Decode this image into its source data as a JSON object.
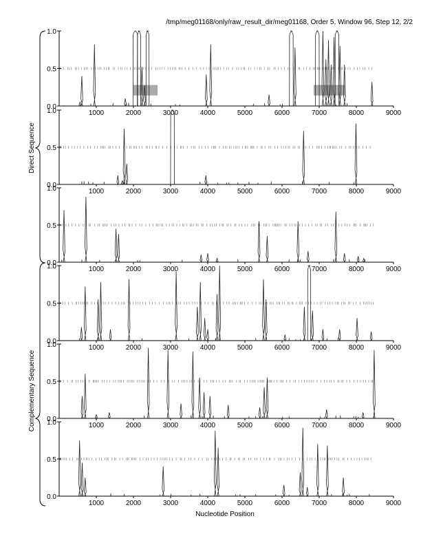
{
  "header": {
    "title": "/tmp/meg01168/only/raw_result_dir/meg01168, Order 5, Window 96, Step 12, 2/2"
  },
  "side_labels": {
    "direct": "Direct Sequence",
    "complementary": "Complementary Sequence"
  },
  "xaxis": {
    "label": "Nucleotide Position"
  },
  "chart_data": {
    "type": "line",
    "title": "/tmp/meg01168/only/raw_result_dir/meg01168, Order 5, Window 96, Step 12, 2/2",
    "xlabel": "Nucleotide Position",
    "xlim": [
      0,
      9000
    ],
    "ylim": [
      0,
      1
    ],
    "xticks": [
      "1000",
      "2000",
      "3000",
      "4000",
      "5000",
      "6000",
      "7000",
      "8000",
      "9000"
    ],
    "yticks": [
      "0.0",
      "0.5",
      "1.0"
    ],
    "grid": false,
    "panels": [
      {
        "name": "direct-frame-1",
        "group": "Direct Sequence",
        "shaded_regions": [
          [
            2000,
            2650
          ],
          [
            6850,
            7700
          ]
        ],
        "peaks": [
          {
            "x": 560,
            "y": 0.05
          },
          {
            "x": 610,
            "y": 0.4
          },
          {
            "x": 950,
            "y": 0.82
          },
          {
            "x": 1780,
            "y": 0.1
          },
          {
            "x": 2050,
            "y": 1.0,
            "w": 80
          },
          {
            "x": 2150,
            "y": 1.0,
            "w": 50
          },
          {
            "x": 2230,
            "y": 0.52
          },
          {
            "x": 2300,
            "y": 0.28
          },
          {
            "x": 2380,
            "y": 1.0,
            "w": 40
          },
          {
            "x": 3960,
            "y": 0.42
          },
          {
            "x": 4080,
            "y": 0.82
          },
          {
            "x": 5650,
            "y": 0.15
          },
          {
            "x": 6250,
            "y": 1.0,
            "w": 60
          },
          {
            "x": 6350,
            "y": 0.78
          },
          {
            "x": 6950,
            "y": 1.0,
            "w": 60
          },
          {
            "x": 7100,
            "y": 1.0
          },
          {
            "x": 7180,
            "y": 0.62
          },
          {
            "x": 7250,
            "y": 0.88
          },
          {
            "x": 7320,
            "y": 0.55
          },
          {
            "x": 7400,
            "y": 0.92
          },
          {
            "x": 7480,
            "y": 1.0,
            "w": 60
          },
          {
            "x": 7560,
            "y": 0.8
          },
          {
            "x": 7680,
            "y": 0.55
          },
          {
            "x": 8420,
            "y": 0.32
          }
        ]
      },
      {
        "name": "direct-frame-2",
        "group": "Direct Sequence",
        "shaded_regions": [],
        "peaks": [
          {
            "x": 1580,
            "y": 0.12
          },
          {
            "x": 1700,
            "y": 0.05
          },
          {
            "x": 1750,
            "y": 0.75
          },
          {
            "x": 1820,
            "y": 0.28
          },
          {
            "x": 3050,
            "y": 1.0,
            "w": 60
          },
          {
            "x": 3950,
            "y": 0.12
          },
          {
            "x": 6580,
            "y": 0.72
          },
          {
            "x": 7990,
            "y": 0.82
          }
        ]
      },
      {
        "name": "direct-frame-3",
        "group": "Direct Sequence",
        "shaded_regions": [],
        "peaks": [
          {
            "x": 130,
            "y": 0.7
          },
          {
            "x": 720,
            "y": 0.88
          },
          {
            "x": 1530,
            "y": 0.45
          },
          {
            "x": 1600,
            "y": 0.38
          },
          {
            "x": 3820,
            "y": 0.1
          },
          {
            "x": 4000,
            "y": 0.12
          },
          {
            "x": 4250,
            "y": 0.05
          },
          {
            "x": 5380,
            "y": 0.55
          },
          {
            "x": 5600,
            "y": 0.35
          },
          {
            "x": 6430,
            "y": 0.55
          },
          {
            "x": 6700,
            "y": 0.15
          },
          {
            "x": 7450,
            "y": 0.68
          },
          {
            "x": 7680,
            "y": 0.12
          },
          {
            "x": 8050,
            "y": 0.08
          },
          {
            "x": 8200,
            "y": 0.05
          }
        ]
      },
      {
        "name": "complementary-frame-1",
        "group": "Complementary Sequence",
        "shaded_regions": [],
        "peaks": [
          {
            "x": 600,
            "y": 0.18
          },
          {
            "x": 700,
            "y": 0.72
          },
          {
            "x": 1050,
            "y": 0.55
          },
          {
            "x": 1120,
            "y": 0.78
          },
          {
            "x": 1380,
            "y": 0.15
          },
          {
            "x": 1880,
            "y": 0.82
          },
          {
            "x": 3150,
            "y": 0.92
          },
          {
            "x": 3720,
            "y": 0.45
          },
          {
            "x": 3800,
            "y": 0.78
          },
          {
            "x": 3920,
            "y": 0.3
          },
          {
            "x": 4000,
            "y": 0.15
          },
          {
            "x": 4250,
            "y": 0.62
          },
          {
            "x": 4320,
            "y": 1.0
          },
          {
            "x": 5500,
            "y": 0.82
          },
          {
            "x": 5570,
            "y": 0.55
          },
          {
            "x": 6080,
            "y": 0.08
          },
          {
            "x": 6600,
            "y": 0.45
          },
          {
            "x": 6730,
            "y": 1.0,
            "w": 40
          },
          {
            "x": 6820,
            "y": 0.4
          },
          {
            "x": 7100,
            "y": 0.15
          },
          {
            "x": 7550,
            "y": 0.15
          },
          {
            "x": 8020,
            "y": 0.3
          },
          {
            "x": 8400,
            "y": 0.12
          }
        ]
      },
      {
        "name": "complementary-frame-2",
        "group": "Complementary Sequence",
        "shaded_regions": [],
        "peaks": [
          {
            "x": 620,
            "y": 0.3
          },
          {
            "x": 700,
            "y": 0.6
          },
          {
            "x": 1000,
            "y": 0.05
          },
          {
            "x": 1350,
            "y": 0.08
          },
          {
            "x": 2400,
            "y": 0.95
          },
          {
            "x": 2930,
            "y": 0.92
          },
          {
            "x": 3280,
            "y": 0.2
          },
          {
            "x": 3600,
            "y": 0.9
          },
          {
            "x": 3780,
            "y": 0.55
          },
          {
            "x": 3900,
            "y": 0.35
          },
          {
            "x": 4060,
            "y": 0.3
          },
          {
            "x": 4550,
            "y": 0.18
          },
          {
            "x": 5400,
            "y": 0.15
          },
          {
            "x": 5520,
            "y": 0.42
          },
          {
            "x": 5600,
            "y": 0.55
          },
          {
            "x": 7200,
            "y": 0.12
          },
          {
            "x": 8180,
            "y": 0.08
          },
          {
            "x": 8480,
            "y": 0.92
          }
        ]
      },
      {
        "name": "complementary-frame-3",
        "group": "Complementary Sequence",
        "shaded_regions": [],
        "peaks": [
          {
            "x": 550,
            "y": 0.75
          },
          {
            "x": 620,
            "y": 0.45
          },
          {
            "x": 700,
            "y": 0.25
          },
          {
            "x": 2800,
            "y": 0.4
          },
          {
            "x": 4200,
            "y": 0.88
          },
          {
            "x": 4280,
            "y": 0.65
          },
          {
            "x": 6050,
            "y": 0.15
          },
          {
            "x": 6490,
            "y": 0.32
          },
          {
            "x": 6560,
            "y": 0.92
          },
          {
            "x": 6680,
            "y": 0.12
          },
          {
            "x": 6960,
            "y": 0.7
          },
          {
            "x": 7220,
            "y": 0.68
          },
          {
            "x": 7650,
            "y": 0.25
          }
        ]
      }
    ]
  }
}
